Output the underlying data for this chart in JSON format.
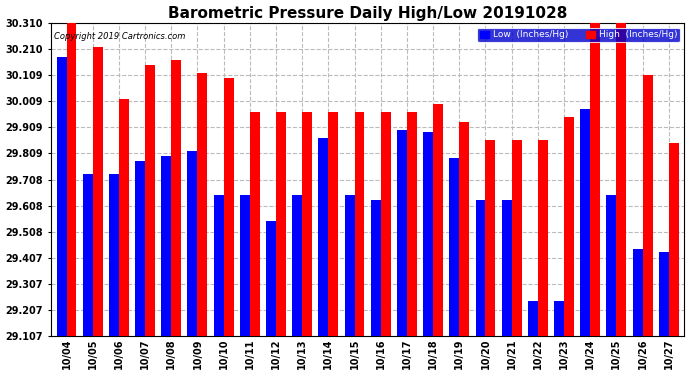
{
  "title": "Barometric Pressure Daily High/Low 20191028",
  "copyright": "Copyright 2019 Cartronics.com",
  "legend_low": "Low  (Inches/Hg)",
  "legend_high": "High  (Inches/Hg)",
  "dates": [
    "10/04",
    "10/05",
    "10/06",
    "10/07",
    "10/08",
    "10/09",
    "10/10",
    "10/11",
    "10/12",
    "10/13",
    "10/14",
    "10/15",
    "10/16",
    "10/17",
    "10/18",
    "10/19",
    "10/20",
    "10/21",
    "10/22",
    "10/23",
    "10/24",
    "10/25",
    "10/26",
    "10/27"
  ],
  "high": [
    30.35,
    30.22,
    30.02,
    30.15,
    30.17,
    30.12,
    30.1,
    29.97,
    29.97,
    29.97,
    29.97,
    29.97,
    29.97,
    29.97,
    30.0,
    29.93,
    29.86,
    29.86,
    29.86,
    29.95,
    30.31,
    30.31,
    30.11,
    29.85
  ],
  "low": [
    30.18,
    29.73,
    29.73,
    29.78,
    29.8,
    29.82,
    29.65,
    29.65,
    29.55,
    29.65,
    29.87,
    29.65,
    29.63,
    29.9,
    29.89,
    29.79,
    29.63,
    29.63,
    29.24,
    29.24,
    29.98,
    29.65,
    29.44,
    29.43
  ],
  "ymin": 29.107,
  "ymax": 30.31,
  "yticks": [
    29.107,
    29.207,
    29.307,
    29.407,
    29.508,
    29.608,
    29.708,
    29.809,
    29.909,
    30.009,
    30.109,
    30.21,
    30.31
  ],
  "bg_color": "#ffffff",
  "bar_color_low": "#0000ff",
  "bar_color_high": "#ff0000",
  "grid_color": "#bbbbbb",
  "title_fontsize": 11,
  "tick_fontsize": 7,
  "bar_width": 0.38,
  "figwidth": 6.9,
  "figheight": 3.75,
  "dpi": 100
}
